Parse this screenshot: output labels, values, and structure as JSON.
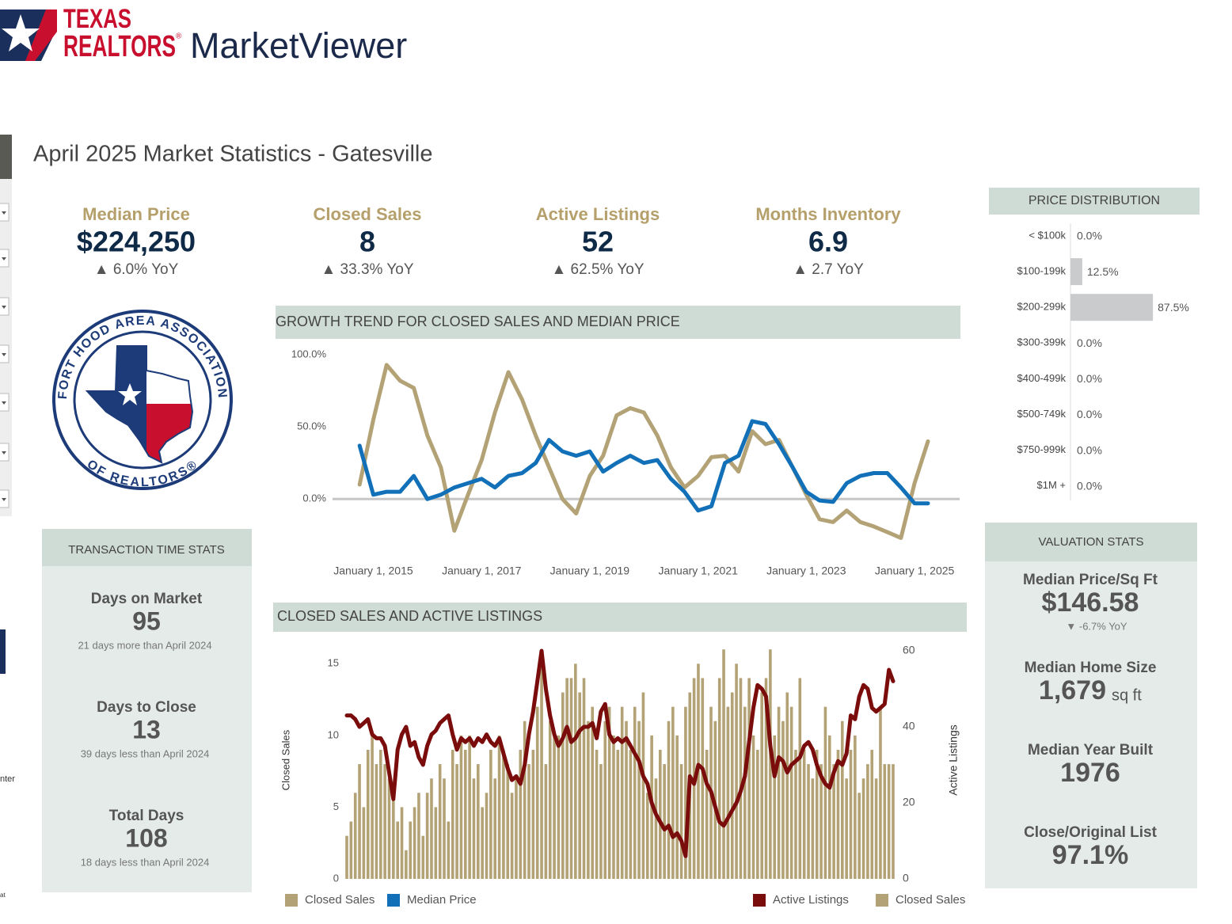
{
  "header": {
    "brand_top": "TEXAS",
    "brand_bottom": "REALTORS",
    "registered": "®",
    "product": "MarketViewer"
  },
  "title": "April 2025 Market Statistics - Gatesville",
  "sidebar_fragments": [
    "nter",
    "at"
  ],
  "kpis": [
    {
      "label": "Median Price",
      "value": "$224,250",
      "change": "▲ 6.0% YoY"
    },
    {
      "label": "Closed Sales",
      "value": "8",
      "change": "▲ 33.3% YoY"
    },
    {
      "label": "Active Listings",
      "value": "52",
      "change": "▲ 62.5% YoY"
    },
    {
      "label": "Months Inventory",
      "value": "6.9",
      "change": "▲ 2.7 YoY"
    }
  ],
  "logo": {
    "top": "FORT HOOD AREA ASSOCIATION",
    "bottom": "OF REALTORS®"
  },
  "transaction_stats": {
    "title": "TRANSACTION TIME STATS",
    "items": [
      {
        "label": "Days on Market",
        "value": "95",
        "note": "21 days more than April 2024"
      },
      {
        "label": "Days to Close",
        "value": "13",
        "note": "39 days less than April 2024"
      },
      {
        "label": "Total Days",
        "value": "108",
        "note": "18 days less than April 2024"
      }
    ]
  },
  "valuation_stats": {
    "title": "VALUATION STATS",
    "items": [
      {
        "label": "Median Price/Sq Ft",
        "value": "$146.58",
        "change": "▼ -6.7% YoY"
      },
      {
        "label": "Median Home Size",
        "value": "1,679",
        "unit": "sq ft"
      },
      {
        "label": "Median Year Built",
        "value": "1976"
      },
      {
        "label": "Close/Original List",
        "value": "97.1%"
      }
    ]
  },
  "chart_data": [
    {
      "type": "bar",
      "orientation": "horizontal",
      "title": "PRICE DISTRIBUTION",
      "categories": [
        "< $100k",
        "$100-199k",
        "$200-299k",
        "$300-399k",
        "$400-499k",
        "$500-749k",
        "$750-999k",
        "$1M +"
      ],
      "values": [
        0,
        12.5,
        87.5,
        0,
        0,
        0,
        0,
        0
      ],
      "value_labels": [
        "0.0%",
        "12.5%",
        "87.5%",
        "0.0%",
        "0.0%",
        "0.0%",
        "0.0%",
        "0.0%"
      ],
      "color": "#c9cbcc",
      "xlim": [
        0,
        100
      ]
    },
    {
      "type": "line",
      "title": "GROWTH TREND FOR CLOSED SALES AND MEDIAN PRICE",
      "x": [
        "2014-10-01",
        "2015-01-01",
        "2015-04-01",
        "2015-07-01",
        "2015-10-01",
        "2016-01-01",
        "2016-04-01",
        "2016-07-01",
        "2016-10-01",
        "2017-01-01",
        "2017-04-01",
        "2017-07-01",
        "2017-10-01",
        "2018-01-01",
        "2018-04-01",
        "2018-07-01",
        "2018-10-01",
        "2019-01-01",
        "2019-04-01",
        "2019-07-01",
        "2019-10-01",
        "2020-01-01",
        "2020-04-01",
        "2020-07-01",
        "2020-10-01",
        "2021-01-01",
        "2021-04-01",
        "2021-07-01",
        "2021-10-01",
        "2022-01-01",
        "2022-04-01",
        "2022-07-01",
        "2022-10-01",
        "2023-01-01",
        "2023-04-01",
        "2023-07-01",
        "2023-10-01",
        "2024-01-01",
        "2024-04-01",
        "2024-07-01",
        "2024-10-01",
        "2025-01-01",
        "2025-04-01"
      ],
      "series": [
        {
          "name": "Closed Sales",
          "color": "#b3a275",
          "values": [
            10,
            55,
            93,
            82,
            77,
            44,
            22,
            -22,
            3,
            27,
            60,
            88,
            69,
            44,
            22,
            0,
            -10,
            16,
            30,
            58,
            63,
            60,
            44,
            22,
            8,
            16,
            29,
            30,
            19,
            47,
            38,
            41,
            22,
            3,
            -14,
            -16,
            -8,
            -16,
            -19,
            -23,
            -27,
            11,
            40
          ]
        },
        {
          "name": "Median Price",
          "color": "#1170b8",
          "values": [
            37,
            3,
            5,
            5,
            16,
            0,
            3,
            8,
            11,
            14,
            8,
            16,
            18,
            25,
            41,
            33,
            30,
            33,
            19,
            25,
            30,
            25,
            27,
            14,
            5,
            -8,
            -5,
            25,
            30,
            54,
            52,
            38,
            22,
            5,
            -1,
            -2,
            11,
            16,
            18,
            18,
            8,
            -3,
            -3
          ]
        }
      ],
      "xlim": [
        "2014-04-01",
        "2025-11-01"
      ],
      "xticks": [
        {
          "value": "2015-01-01",
          "label": "January 1, 2015"
        },
        {
          "value": "2017-01-01",
          "label": "January 1, 2017"
        },
        {
          "value": "2019-01-01",
          "label": "January 1, 2019"
        },
        {
          "value": "2021-01-01",
          "label": "January 1, 2021"
        },
        {
          "value": "2023-01-01",
          "label": "January 1, 2023"
        },
        {
          "value": "2025-01-01",
          "label": "January 1, 2025"
        }
      ],
      "ylim": [
        -35,
        105
      ],
      "yticks": [
        {
          "value": 0,
          "label": "0.0%"
        },
        {
          "value": 50,
          "label": "50.0%"
        },
        {
          "value": 100,
          "label": "100.0%"
        }
      ]
    },
    {
      "type": "combo",
      "title": "CLOSED SALES AND ACTIVE LISTINGS",
      "y_label": "Closed Sales",
      "y2_label": "Active Listings",
      "series": [
        {
          "name": "Active Listings",
          "mark": "line",
          "axis": "y2",
          "color": "#7a0c0c",
          "values": [
            43,
            43,
            42,
            40,
            41,
            42,
            38,
            37,
            37,
            35,
            28,
            21,
            34,
            38,
            40,
            35,
            36,
            32,
            30,
            35,
            38,
            39,
            41,
            42,
            43,
            38,
            34,
            37,
            36,
            37,
            35,
            37,
            36,
            38,
            36,
            35,
            37,
            33,
            29,
            26,
            27,
            25,
            30,
            38,
            44,
            52,
            60,
            50,
            43,
            38,
            35,
            37,
            40,
            36,
            37,
            39,
            40,
            40,
            41,
            37,
            44,
            46,
            38,
            36,
            37,
            36,
            37,
            35,
            33,
            31,
            27,
            25,
            20,
            17,
            15,
            13,
            14,
            11,
            12,
            10,
            6,
            27,
            25,
            30,
            29,
            25,
            23,
            19,
            15,
            14,
            16,
            18,
            20,
            23,
            27,
            36,
            45,
            51,
            50,
            48,
            35,
            27,
            32,
            31,
            28,
            30,
            31,
            32,
            35,
            36,
            34,
            30,
            27,
            25,
            24,
            28,
            31,
            30,
            33,
            43,
            42,
            48,
            51,
            50,
            45,
            44,
            45,
            46,
            55,
            52
          ]
        },
        {
          "name": "Closed Sales",
          "mark": "bar",
          "color": "#b3a275",
          "values": [
            3,
            4,
            6,
            8,
            5,
            9,
            10,
            8,
            9,
            8,
            7,
            6,
            4,
            5,
            2,
            4,
            5,
            6,
            3,
            6,
            7,
            5,
            8,
            7,
            4,
            9,
            8,
            10,
            9,
            10,
            7,
            8,
            5,
            6,
            9,
            7,
            10,
            9,
            8,
            6,
            7,
            9,
            11,
            8,
            9,
            12,
            15,
            8,
            11,
            10,
            10,
            13,
            14,
            14,
            15,
            13,
            14,
            11,
            12,
            9,
            8,
            11,
            12,
            10,
            9,
            12,
            11,
            9,
            12,
            11,
            13,
            6,
            10,
            7,
            9,
            8,
            11,
            12,
            10,
            8,
            12,
            13,
            14,
            15,
            14,
            9,
            12,
            11,
            14,
            16,
            12,
            13,
            15,
            14,
            12,
            14,
            10,
            9,
            13,
            14,
            16,
            10,
            12,
            11,
            13,
            12,
            9,
            14,
            9,
            8,
            7,
            9,
            8,
            12,
            10,
            8,
            9,
            11,
            7,
            9,
            10,
            6,
            7,
            8,
            9,
            7,
            12,
            8,
            8,
            8
          ]
        }
      ],
      "ylim": [
        0,
        15.9
      ],
      "yticks": [
        0,
        5,
        10,
        15
      ],
      "y2lim": [
        0,
        60
      ],
      "y2ticks": [
        0,
        20,
        40,
        60
      ]
    }
  ]
}
